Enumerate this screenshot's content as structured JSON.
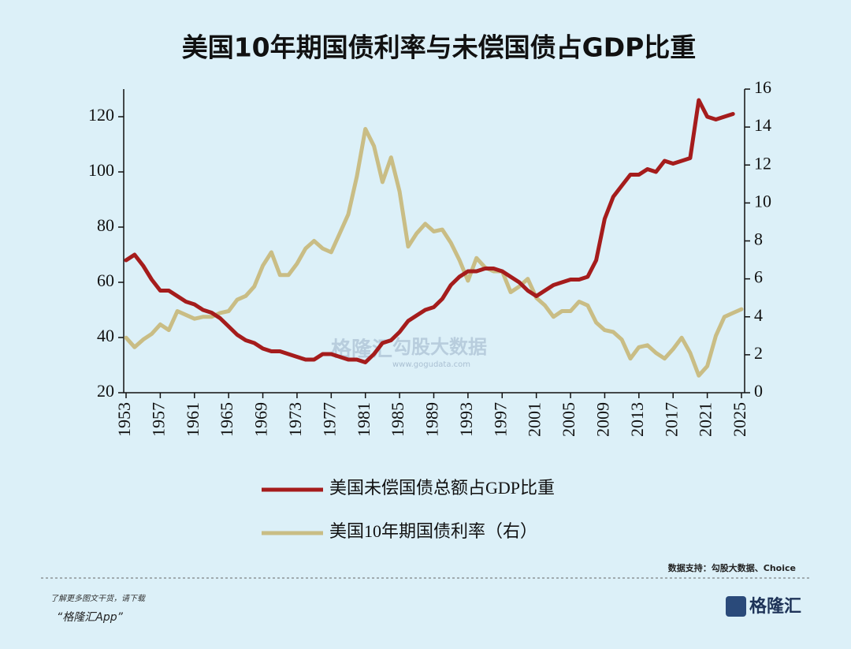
{
  "chart_data": {
    "type": "line",
    "title": "美国10年期国债利率与未偿国债占GDP比重",
    "x": [
      1953,
      1954,
      1955,
      1956,
      1957,
      1958,
      1959,
      1960,
      1961,
      1962,
      1963,
      1964,
      1965,
      1966,
      1967,
      1968,
      1969,
      1970,
      1971,
      1972,
      1973,
      1974,
      1975,
      1976,
      1977,
      1978,
      1979,
      1980,
      1981,
      1982,
      1983,
      1984,
      1985,
      1986,
      1987,
      1988,
      1989,
      1990,
      1991,
      1992,
      1993,
      1994,
      1995,
      1996,
      1997,
      1998,
      1999,
      2000,
      2001,
      2002,
      2003,
      2004,
      2005,
      2006,
      2007,
      2008,
      2009,
      2010,
      2011,
      2012,
      2013,
      2014,
      2015,
      2016,
      2017,
      2018,
      2019,
      2020,
      2021,
      2022,
      2023,
      2024,
      2025
    ],
    "series": [
      {
        "name": "美国未偿国债总额占GDP比重",
        "color": "#a51c1c",
        "axis": "y",
        "values": [
          68,
          70,
          66,
          61,
          57,
          57,
          55,
          53,
          52,
          50,
          49,
          47,
          44,
          41,
          39,
          38,
          36,
          35,
          35,
          34,
          33,
          32,
          32,
          34,
          34,
          33,
          32,
          32,
          31,
          34,
          38,
          39,
          42,
          46,
          48,
          50,
          51,
          54,
          59,
          62,
          64,
          64,
          65,
          65,
          64,
          62,
          60,
          57,
          55,
          57,
          59,
          60,
          61,
          61,
          62,
          68,
          83,
          91,
          95,
          99,
          99,
          101,
          100,
          104,
          103,
          104,
          105,
          126,
          120,
          119,
          120,
          121,
          null
        ]
      },
      {
        "name": "美国10年期国债利率（右）",
        "color": "#c9bd85",
        "axis": "y2",
        "values": [
          2.9,
          2.4,
          2.8,
          3.1,
          3.6,
          3.3,
          4.3,
          4.1,
          3.9,
          4.0,
          4.0,
          4.2,
          4.3,
          4.9,
          5.1,
          5.6,
          6.7,
          7.4,
          6.2,
          6.2,
          6.8,
          7.6,
          8.0,
          7.6,
          7.4,
          8.4,
          9.4,
          11.4,
          13.9,
          13.0,
          11.1,
          12.4,
          10.6,
          7.7,
          8.4,
          8.9,
          8.5,
          8.6,
          7.9,
          7.0,
          5.9,
          7.1,
          6.6,
          6.4,
          6.4,
          5.3,
          5.6,
          6.0,
          5.0,
          4.6,
          4.0,
          4.3,
          4.3,
          4.8,
          4.6,
          3.7,
          3.3,
          3.2,
          2.8,
          1.8,
          2.4,
          2.5,
          2.1,
          1.8,
          2.3,
          2.9,
          2.1,
          0.9,
          1.4,
          3.0,
          4.0,
          4.2,
          4.4
        ]
      }
    ],
    "xlim": [
      1953,
      2025
    ],
    "xticks": [
      1953,
      1957,
      1961,
      1965,
      1969,
      1973,
      1977,
      1981,
      1985,
      1989,
      1993,
      1997,
      2001,
      2005,
      2009,
      2013,
      2017,
      2021,
      2025
    ],
    "ylim": [
      20,
      130
    ],
    "yticks": [
      20,
      40,
      60,
      80,
      100,
      120
    ],
    "y2lim": [
      0,
      16
    ],
    "y2ticks": [
      0,
      2,
      4,
      6,
      8,
      10,
      12,
      14,
      16
    ],
    "legend": "bottom"
  },
  "watermark": {
    "brand": "格隆汇",
    "site": "勾股大数据",
    "url": "www.gogudata.com"
  },
  "footer": {
    "source": "数据支持：勾股大数据、Choice",
    "promo": "了解更多图文干货，请下载",
    "app": "“格隆汇App”",
    "logo": "格隆汇"
  }
}
